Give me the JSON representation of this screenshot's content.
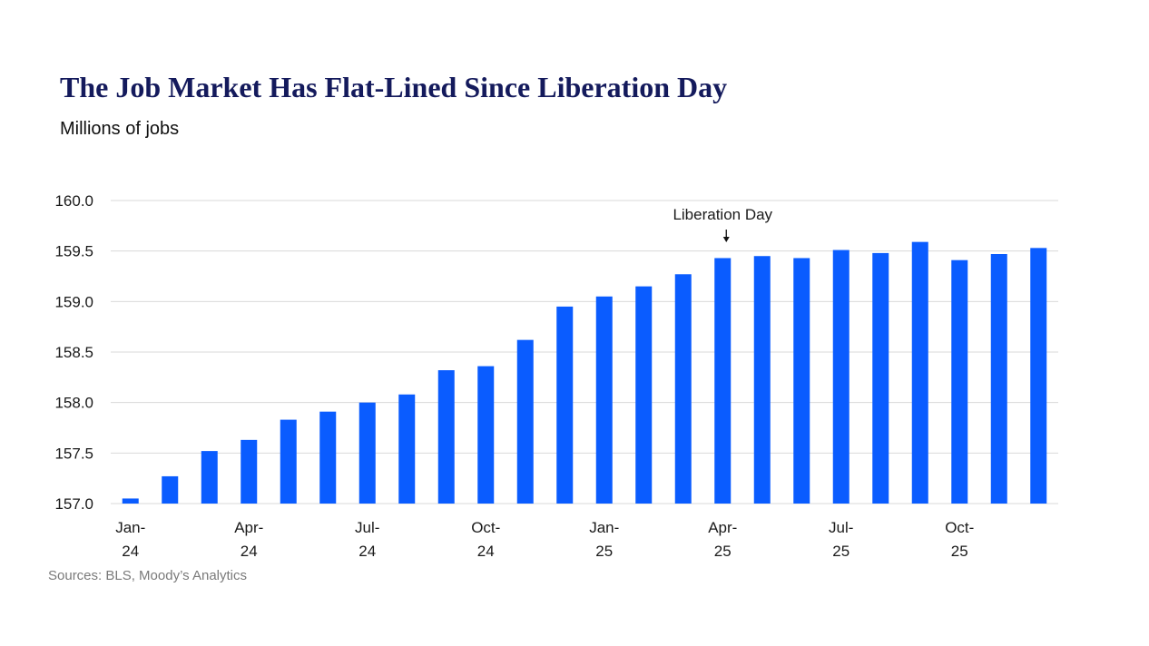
{
  "chart_data": {
    "type": "bar",
    "title": "The Job Market Has Flat-Lined Since Liberation Day",
    "subtitle": "Millions of jobs",
    "source": "Sources: BLS, Moody’s Analytics",
    "xlabel": "",
    "ylabel": "Millions of jobs",
    "ylim": [
      157.0,
      160.0
    ],
    "yticks": [
      "157.0",
      "157.5",
      "158.0",
      "158.5",
      "159.0",
      "159.5",
      "160.0"
    ],
    "grid": true,
    "bar_color": "#0a5cff",
    "categories": [
      "Jan-24",
      "Feb-24",
      "Mar-24",
      "Apr-24",
      "May-24",
      "Jun-24",
      "Jul-24",
      "Aug-24",
      "Sep-24",
      "Oct-24",
      "Nov-24",
      "Dec-24",
      "Jan-25",
      "Feb-25",
      "Mar-25",
      "Apr-25",
      "May-25",
      "Jun-25",
      "Jul-25",
      "Aug-25",
      "Sep-25",
      "Oct-25",
      "Nov-25",
      "Dec-25"
    ],
    "values": [
      157.05,
      157.27,
      157.52,
      157.63,
      157.83,
      157.91,
      158.0,
      158.08,
      158.32,
      158.36,
      158.62,
      158.95,
      159.05,
      159.15,
      159.27,
      159.43,
      159.45,
      159.43,
      159.51,
      159.48,
      159.59,
      159.41,
      159.47,
      159.53
    ],
    "xtick_labels": [
      {
        "index": 0,
        "month": "Jan-",
        "year": "24"
      },
      {
        "index": 3,
        "month": "Apr-",
        "year": "24"
      },
      {
        "index": 6,
        "month": "Jul-",
        "year": "24"
      },
      {
        "index": 9,
        "month": "Oct-",
        "year": "24"
      },
      {
        "index": 12,
        "month": "Jan-",
        "year": "25"
      },
      {
        "index": 15,
        "month": "Apr-",
        "year": "25"
      },
      {
        "index": 18,
        "month": "Jul-",
        "year": "25"
      },
      {
        "index": 21,
        "month": "Oct-",
        "year": "25"
      }
    ],
    "annotation": {
      "text": "Liberation  Day",
      "index": 15,
      "arrow": "↓"
    }
  }
}
